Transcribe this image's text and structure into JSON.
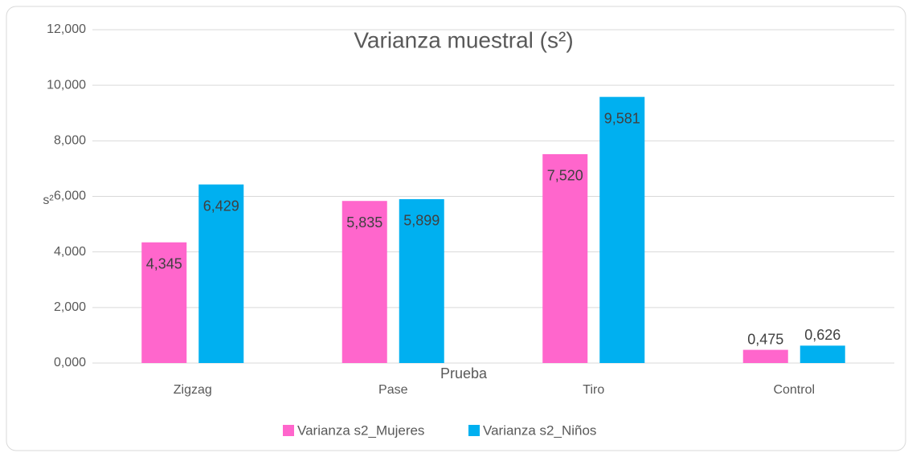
{
  "chart_data": {
    "type": "bar",
    "title": "Varianza muestral (s²)",
    "x_label": "Prueba",
    "y_label": "s²",
    "categories": [
      "Zigzag",
      "Pase",
      "Tiro",
      "Control"
    ],
    "series": [
      {
        "name": "Varianza s2_Mujeres",
        "color": "#ff66cc",
        "values": [
          4.345,
          5.835,
          7.52,
          0.475
        ],
        "value_labels": [
          "4,345",
          "5,835",
          "7,520",
          "0,475"
        ]
      },
      {
        "name": "Varianza s2_Niños",
        "color": "#00b0f0",
        "values": [
          6.429,
          5.899,
          9.581,
          0.626
        ],
        "value_labels": [
          "6,429",
          "5,899",
          "9,581",
          "0,626"
        ]
      }
    ],
    "ylim": [
      0,
      12
    ],
    "yticks": [
      {
        "value": 0,
        "label": "0,000"
      },
      {
        "value": 2,
        "label": "2,000"
      },
      {
        "value": 4,
        "label": "4,000"
      },
      {
        "value": 6,
        "label": "6,000"
      },
      {
        "value": 8,
        "label": "8,000"
      },
      {
        "value": 10,
        "label": "10,000"
      },
      {
        "value": 12,
        "label": "12,000"
      }
    ],
    "grid": true,
    "legend": "bottom"
  }
}
